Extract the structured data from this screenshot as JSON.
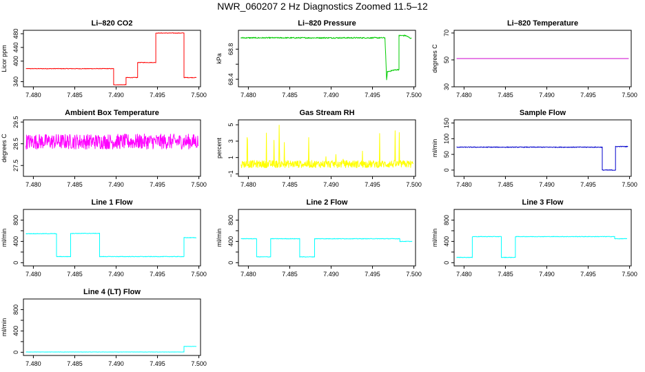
{
  "main_title": "NWR_060207  2 Hz Diagnostics Zoomed 11.5–12",
  "chart_data": [
    {
      "type": "line",
      "title": "Li–820 CO2",
      "ylabel": "Licor ppm",
      "color": "#ff0000",
      "xlim": [
        7.4788,
        7.5002
      ],
      "ylim": [
        325,
        490
      ],
      "xticks": [
        7.48,
        7.485,
        7.49,
        7.495,
        7.5
      ],
      "xtick_labels": [
        "7.480",
        "7.485",
        "7.490",
        "7.495",
        "7.500"
      ],
      "yticks": [
        340,
        400,
        440,
        480
      ],
      "ytick_labels": [
        "340",
        "400",
        "440",
        "480"
      ],
      "noise": 0.8,
      "series": [
        {
          "name": "CO2",
          "x": [
            7.4791,
            7.4897,
            7.4897,
            7.4912,
            7.4912,
            7.4926,
            7.4926,
            7.4948,
            7.4948,
            7.4982,
            7.4982,
            7.4997
          ],
          "y": [
            378,
            378,
            331,
            331,
            352,
            352,
            396,
            396,
            482,
            482,
            352,
            352
          ]
        }
      ]
    },
    {
      "type": "line",
      "title": "Li–820 Pressure",
      "ylabel": "kPa",
      "color": "#00cc00",
      "xlim": [
        7.4788,
        7.5002
      ],
      "ylim": [
        68.3,
        69.05
      ],
      "xticks": [
        7.48,
        7.485,
        7.49,
        7.495,
        7.5
      ],
      "xtick_labels": [
        "7.480",
        "7.485",
        "7.490",
        "7.495",
        "7.500"
      ],
      "yticks": [
        68.4,
        68.6,
        68.8
      ],
      "ytick_labels": [
        "68.4",
        "",
        "68.8"
      ],
      "noise": 0.008,
      "series": [
        {
          "name": "Pressure",
          "x": [
            7.4791,
            7.4965,
            7.4966,
            7.4967,
            7.4968,
            7.4975,
            7.4975,
            7.4982,
            7.4982,
            7.499,
            7.4997
          ],
          "y": [
            68.95,
            68.95,
            68.7,
            68.39,
            68.5,
            68.52,
            68.52,
            68.53,
            68.98,
            68.98,
            68.94
          ]
        }
      ]
    },
    {
      "type": "line",
      "title": "Li–820 Temperature",
      "ylabel": "degrees C",
      "color": "#cc00cc",
      "xlim": [
        7.4788,
        7.5002
      ],
      "ylim": [
        30,
        72
      ],
      "xticks": [
        7.48,
        7.485,
        7.49,
        7.495,
        7.5
      ],
      "xtick_labels": [
        "7.480",
        "7.485",
        "7.490",
        "7.495",
        "7.500"
      ],
      "yticks": [
        30,
        50,
        70
      ],
      "ytick_labels": [
        "30",
        "50",
        "70"
      ],
      "noise": 0,
      "series": [
        {
          "name": "Temperature",
          "x": [
            7.4791,
            7.4999
          ],
          "y": [
            51,
            51
          ]
        }
      ]
    },
    {
      "type": "line",
      "title": "Ambient Box Temperature",
      "ylabel": "degrees C",
      "color": "#ff00ff",
      "xlim": [
        7.4788,
        7.5002
      ],
      "ylim": [
        27.0,
        29.6
      ],
      "xticks": [
        7.48,
        7.485,
        7.49,
        7.495,
        7.5
      ],
      "xtick_labels": [
        "7.480",
        "7.485",
        "7.490",
        "7.495",
        "7.500"
      ],
      "yticks": [
        27.5,
        28.5,
        29.5
      ],
      "ytick_labels": [
        "27.5",
        "28.5",
        "29.5"
      ],
      "noise": 0.35,
      "series": [
        {
          "name": "Box temperature",
          "x": [
            7.4791,
            7.4999
          ],
          "y": [
            28.6,
            28.6
          ]
        }
      ]
    },
    {
      "type": "line",
      "title": "Gas Stream RH",
      "ylabel": "percent",
      "color": "#ffff00",
      "xlim": [
        7.4788,
        7.5002
      ],
      "ylim": [
        -1.3,
        5.6
      ],
      "xticks": [
        7.48,
        7.485,
        7.49,
        7.495,
        7.5
      ],
      "xtick_labels": [
        "7.480",
        "7.485",
        "7.490",
        "7.495",
        "7.500"
      ],
      "yticks": [
        -1,
        1,
        3,
        5
      ],
      "ytick_labels": [
        "−1",
        "1",
        "3",
        "5"
      ],
      "noise": 0.45,
      "spikes": 0.05,
      "spike_max": 4.5,
      "series": [
        {
          "name": "RH",
          "x": [
            7.4791,
            7.4999
          ],
          "y": [
            0.2,
            0.2
          ]
        }
      ]
    },
    {
      "type": "line",
      "title": "Sample Flow",
      "ylabel": "ml/min",
      "color": "#0000cc",
      "xlim": [
        7.4788,
        7.5002
      ],
      "ylim": [
        -20,
        160
      ],
      "xticks": [
        7.48,
        7.485,
        7.49,
        7.495,
        7.5
      ],
      "xtick_labels": [
        "7.480",
        "7.485",
        "7.490",
        "7.495",
        "7.500"
      ],
      "yticks": [
        0,
        50,
        100,
        150
      ],
      "ytick_labels": [
        "0",
        "50",
        "100",
        "150"
      ],
      "noise": 1.2,
      "series": [
        {
          "name": "Sample flow",
          "x": [
            7.4791,
            7.4967,
            7.4967,
            7.4983,
            7.4983,
            7.4998
          ],
          "y": [
            73,
            73,
            0,
            0,
            75,
            75
          ]
        }
      ]
    },
    {
      "type": "line",
      "title": "Line 1 Flow",
      "ylabel": "ml/min",
      "color": "#00ffff",
      "xlim": [
        7.4788,
        7.5002
      ],
      "ylim": [
        -60,
        1000
      ],
      "xticks": [
        7.48,
        7.485,
        7.49,
        7.495,
        7.5
      ],
      "xtick_labels": [
        "7.480",
        "7.485",
        "7.490",
        "7.495",
        "7.500"
      ],
      "yticks": [
        0,
        200,
        400,
        600,
        800
      ],
      "ytick_labels": [
        "0",
        "",
        "400",
        "",
        "800"
      ],
      "noise": 5,
      "series": [
        {
          "name": "Line 1",
          "x": [
            7.4791,
            7.4828,
            7.4828,
            7.4845,
            7.4845,
            7.488,
            7.488,
            7.4982,
            7.4982,
            7.4997
          ],
          "y": [
            545,
            545,
            115,
            115,
            550,
            550,
            115,
            115,
            470,
            470
          ]
        }
      ]
    },
    {
      "type": "line",
      "title": "Line 2 Flow",
      "ylabel": "ml/min",
      "color": "#00ffff",
      "xlim": [
        7.4788,
        7.5002
      ],
      "ylim": [
        -60,
        1000
      ],
      "xticks": [
        7.48,
        7.485,
        7.49,
        7.495,
        7.5
      ],
      "xtick_labels": [
        "7.480",
        "7.485",
        "7.490",
        "7.495",
        "7.500"
      ],
      "yticks": [
        0,
        200,
        400,
        600,
        800
      ],
      "ytick_labels": [
        "0",
        "",
        "400",
        "",
        "800"
      ],
      "noise": 5,
      "series": [
        {
          "name": "Line 2",
          "x": [
            7.4791,
            7.481,
            7.481,
            7.4827,
            7.4827,
            7.4862,
            7.4862,
            7.488,
            7.488,
            7.4983,
            7.4983,
            7.4998
          ],
          "y": [
            450,
            450,
            110,
            110,
            450,
            450,
            110,
            110,
            450,
            450,
            400,
            400
          ]
        }
      ]
    },
    {
      "type": "line",
      "title": "Line 3 Flow",
      "ylabel": "ml/min",
      "color": "#00ffff",
      "xlim": [
        7.4788,
        7.5002
      ],
      "ylim": [
        -60,
        1000
      ],
      "xticks": [
        7.48,
        7.485,
        7.49,
        7.495,
        7.5
      ],
      "xtick_labels": [
        "7.480",
        "7.485",
        "7.490",
        "7.495",
        "7.500"
      ],
      "yticks": [
        0,
        200,
        400,
        600,
        800
      ],
      "ytick_labels": [
        "0",
        "",
        "400",
        "",
        "800"
      ],
      "noise": 5,
      "series": [
        {
          "name": "Line 3",
          "x": [
            7.4791,
            7.481,
            7.481,
            7.4845,
            7.4845,
            7.4862,
            7.4862,
            7.4982,
            7.4982,
            7.4997
          ],
          "y": [
            100,
            100,
            490,
            490,
            100,
            100,
            490,
            490,
            450,
            450
          ]
        }
      ]
    },
    {
      "type": "line",
      "title": "Line 4 (LT) Flow",
      "ylabel": "ml/min",
      "color": "#00ffff",
      "xlim": [
        7.4788,
        7.5002
      ],
      "ylim": [
        -60,
        1000
      ],
      "xticks": [
        7.48,
        7.485,
        7.49,
        7.495,
        7.5
      ],
      "xtick_labels": [
        "7.480",
        "7.485",
        "7.490",
        "7.495",
        "7.500"
      ],
      "yticks": [
        0,
        200,
        400,
        600,
        800
      ],
      "ytick_labels": [
        "0",
        "",
        "400",
        "",
        "800"
      ],
      "noise": 2,
      "series": [
        {
          "name": "Line 4",
          "x": [
            7.4791,
            7.4982,
            7.4982,
            7.4997
          ],
          "y": [
            5,
            5,
            110,
            110
          ]
        }
      ]
    }
  ]
}
